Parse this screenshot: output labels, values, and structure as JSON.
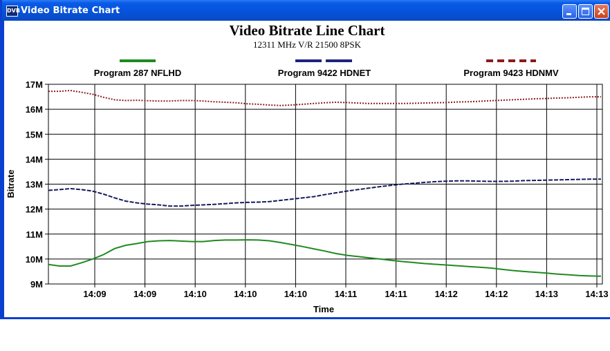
{
  "window": {
    "title": "Video Bitrate Chart",
    "icon_label": "DVB",
    "controls": [
      "minimize",
      "maximize",
      "close"
    ]
  },
  "chart_data": {
    "type": "line",
    "title": "Video Bitrate Line Chart",
    "subtitle": "12311 MHz V/R 21500 8PSK",
    "xlabel": "Time",
    "ylabel": "Bitrate",
    "ylim": [
      9,
      17
    ],
    "yticks": [
      "9M",
      "10M",
      "11M",
      "12M",
      "13M",
      "14M",
      "15M",
      "16M",
      "17M"
    ],
    "xticks": [
      "14:09",
      "14:09",
      "14:10",
      "14:10",
      "14:10",
      "14:11",
      "14:11",
      "14:12",
      "14:12",
      "14:13",
      "14:13"
    ],
    "grid": true,
    "legend_position": "top",
    "series": [
      {
        "name": "Program 287 NFLHD",
        "color": "#1f8a1f",
        "style": "solid",
        "points": [
          [
            0,
            9.78
          ],
          [
            0.2,
            9.72
          ],
          [
            0.4,
            9.72
          ],
          [
            0.6,
            9.85
          ],
          [
            0.8,
            10.0
          ],
          [
            1.0,
            10.18
          ],
          [
            1.2,
            10.42
          ],
          [
            1.4,
            10.55
          ],
          [
            1.6,
            10.62
          ],
          [
            1.8,
            10.7
          ],
          [
            2.0,
            10.73
          ],
          [
            2.2,
            10.74
          ],
          [
            2.4,
            10.72
          ],
          [
            2.6,
            10.7
          ],
          [
            2.8,
            10.7
          ],
          [
            3.0,
            10.74
          ],
          [
            3.2,
            10.76
          ],
          [
            3.4,
            10.76
          ],
          [
            3.6,
            10.77
          ],
          [
            3.8,
            10.76
          ],
          [
            4.0,
            10.73
          ],
          [
            4.2,
            10.66
          ],
          [
            4.4,
            10.58
          ],
          [
            4.6,
            10.5
          ],
          [
            4.8,
            10.41
          ],
          [
            5.0,
            10.32
          ],
          [
            5.2,
            10.22
          ],
          [
            5.4,
            10.15
          ],
          [
            5.6,
            10.1
          ],
          [
            5.8,
            10.05
          ],
          [
            6.0,
            10.0
          ],
          [
            6.2,
            9.95
          ],
          [
            6.4,
            9.9
          ],
          [
            6.6,
            9.86
          ],
          [
            6.8,
            9.82
          ],
          [
            7.0,
            9.79
          ],
          [
            7.2,
            9.76
          ],
          [
            7.4,
            9.73
          ],
          [
            7.6,
            9.7
          ],
          [
            7.8,
            9.67
          ],
          [
            8.0,
            9.64
          ],
          [
            8.2,
            9.59
          ],
          [
            8.4,
            9.54
          ],
          [
            8.6,
            9.5
          ],
          [
            8.8,
            9.47
          ],
          [
            9.0,
            9.44
          ],
          [
            9.2,
            9.4
          ],
          [
            9.4,
            9.37
          ],
          [
            9.6,
            9.34
          ],
          [
            9.8,
            9.32
          ],
          [
            10.0,
            9.31
          ]
        ]
      },
      {
        "name": "Program 9422 HDNET",
        "color": "#151a5a",
        "style": "dashed",
        "points": [
          [
            0,
            12.75
          ],
          [
            0.2,
            12.78
          ],
          [
            0.4,
            12.82
          ],
          [
            0.6,
            12.78
          ],
          [
            0.8,
            12.72
          ],
          [
            1.0,
            12.6
          ],
          [
            1.2,
            12.45
          ],
          [
            1.4,
            12.32
          ],
          [
            1.6,
            12.25
          ],
          [
            1.8,
            12.2
          ],
          [
            2.0,
            12.17
          ],
          [
            2.2,
            12.12
          ],
          [
            2.4,
            12.12
          ],
          [
            2.6,
            12.15
          ],
          [
            2.8,
            12.17
          ],
          [
            3.0,
            12.19
          ],
          [
            3.2,
            12.22
          ],
          [
            3.4,
            12.25
          ],
          [
            3.6,
            12.27
          ],
          [
            3.8,
            12.28
          ],
          [
            4.0,
            12.3
          ],
          [
            4.2,
            12.35
          ],
          [
            4.4,
            12.4
          ],
          [
            4.6,
            12.45
          ],
          [
            4.8,
            12.5
          ],
          [
            5.0,
            12.58
          ],
          [
            5.2,
            12.65
          ],
          [
            5.4,
            12.72
          ],
          [
            5.6,
            12.78
          ],
          [
            5.8,
            12.84
          ],
          [
            6.0,
            12.9
          ],
          [
            6.2,
            12.95
          ],
          [
            6.4,
            13.0
          ],
          [
            6.6,
            13.03
          ],
          [
            6.8,
            13.07
          ],
          [
            7.0,
            13.1
          ],
          [
            7.2,
            13.12
          ],
          [
            7.4,
            13.13
          ],
          [
            7.6,
            13.13
          ],
          [
            7.8,
            13.12
          ],
          [
            8.0,
            13.11
          ],
          [
            8.2,
            13.11
          ],
          [
            8.4,
            13.12
          ],
          [
            8.6,
            13.14
          ],
          [
            8.8,
            13.15
          ],
          [
            9.0,
            13.16
          ],
          [
            9.2,
            13.17
          ],
          [
            9.4,
            13.18
          ],
          [
            9.6,
            13.19
          ],
          [
            9.8,
            13.2
          ],
          [
            10.0,
            13.2
          ]
        ]
      },
      {
        "name": "Program 9423 HDNMV",
        "color": "#8b1a1a",
        "style": "dotted",
        "points": [
          [
            0,
            16.72
          ],
          [
            0.2,
            16.72
          ],
          [
            0.4,
            16.75
          ],
          [
            0.6,
            16.68
          ],
          [
            0.8,
            16.6
          ],
          [
            1.0,
            16.48
          ],
          [
            1.2,
            16.38
          ],
          [
            1.4,
            16.35
          ],
          [
            1.6,
            16.36
          ],
          [
            1.8,
            16.34
          ],
          [
            2.0,
            16.33
          ],
          [
            2.2,
            16.33
          ],
          [
            2.4,
            16.35
          ],
          [
            2.6,
            16.35
          ],
          [
            2.8,
            16.33
          ],
          [
            3.0,
            16.3
          ],
          [
            3.2,
            16.28
          ],
          [
            3.4,
            16.26
          ],
          [
            3.6,
            16.22
          ],
          [
            3.8,
            16.2
          ],
          [
            4.0,
            16.17
          ],
          [
            4.2,
            16.15
          ],
          [
            4.4,
            16.17
          ],
          [
            4.6,
            16.2
          ],
          [
            4.8,
            16.23
          ],
          [
            5.0,
            16.26
          ],
          [
            5.2,
            16.28
          ],
          [
            5.4,
            16.27
          ],
          [
            5.6,
            16.25
          ],
          [
            5.8,
            16.23
          ],
          [
            6.0,
            16.23
          ],
          [
            6.2,
            16.23
          ],
          [
            6.4,
            16.23
          ],
          [
            6.6,
            16.24
          ],
          [
            6.8,
            16.25
          ],
          [
            7.0,
            16.26
          ],
          [
            7.2,
            16.27
          ],
          [
            7.4,
            16.29
          ],
          [
            7.6,
            16.3
          ],
          [
            7.8,
            16.32
          ],
          [
            8.0,
            16.34
          ],
          [
            8.2,
            16.36
          ],
          [
            8.4,
            16.38
          ],
          [
            8.6,
            16.4
          ],
          [
            8.8,
            16.42
          ],
          [
            9.0,
            16.43
          ],
          [
            9.2,
            16.45
          ],
          [
            9.4,
            16.46
          ],
          [
            9.6,
            16.48
          ],
          [
            9.8,
            16.5
          ],
          [
            10.0,
            16.5
          ]
        ]
      }
    ]
  }
}
